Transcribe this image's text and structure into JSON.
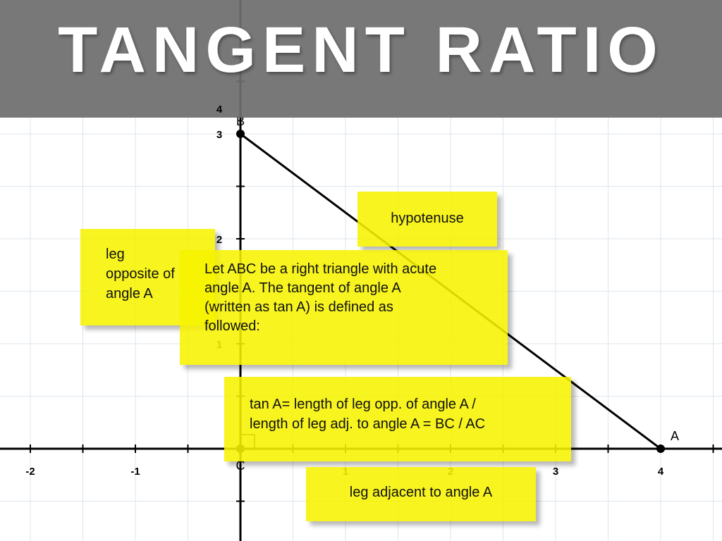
{
  "slide": {
    "title": "TANGENT RATIO"
  },
  "graph": {
    "x_ticks": [
      "-2",
      "-1",
      "1",
      "2",
      "3",
      "4"
    ],
    "y_ticks": [
      "1",
      "2",
      "3",
      "4"
    ],
    "points": [
      {
        "label": "B",
        "x": 0,
        "y": 3
      },
      {
        "label": "C",
        "x": 0,
        "y": 0
      },
      {
        "label": "A",
        "x": 4,
        "y": 0
      }
    ]
  },
  "notes": {
    "leg_opposite": [
      "leg",
      "opposite of",
      "angle A"
    ],
    "definition": [
      "Let ABC be a right triangle with acute",
      "angle A.  The tangent of angle A",
      "(written as tan A) is defined as",
      "followed:"
    ],
    "hypotenuse": "hypotenuse",
    "formula": [
      "tan A= length of leg opp. of angle A /",
      "length of leg adj. to angle A = BC / AC"
    ],
    "leg_adjacent": "leg adjacent to angle A"
  },
  "colors": {
    "note": "#f6f300",
    "title_bar": "#6e6e6e"
  }
}
